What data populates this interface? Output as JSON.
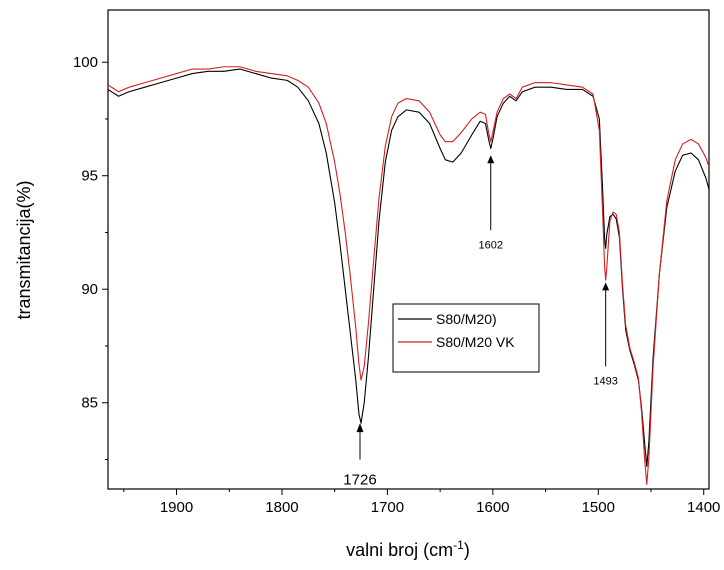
{
  "chart_data": {
    "type": "line",
    "title": "",
    "xlabel": "valni broj (cm",
    "xlabel_sup": "-1",
    "xlabel_end": ")",
    "ylabel": "transmitancija(%)",
    "xlim": [
      1965,
      1395
    ],
    "ylim": [
      81.2,
      102.3
    ],
    "x_reversed": true,
    "grid": false,
    "legend_position": "center-right",
    "xticks": [
      1900,
      1800,
      1700,
      1600,
      1500,
      1400
    ],
    "xtick_labels": [
      "1900",
      "1800",
      "1700",
      "1600",
      "1500",
      "1400"
    ],
    "yticks": [
      85,
      90,
      95,
      100
    ],
    "ytick_labels": [
      "85",
      "90",
      "95",
      "100"
    ],
    "series": [
      {
        "name": "S80/M20)",
        "color": "#000000",
        "points": [
          [
            1965,
            98.8
          ],
          [
            1955,
            98.5
          ],
          [
            1945,
            98.7
          ],
          [
            1930,
            98.9
          ],
          [
            1915,
            99.1
          ],
          [
            1900,
            99.3
          ],
          [
            1885,
            99.5
          ],
          [
            1870,
            99.6
          ],
          [
            1855,
            99.6
          ],
          [
            1840,
            99.7
          ],
          [
            1825,
            99.5
          ],
          [
            1810,
            99.3
          ],
          [
            1795,
            99.2
          ],
          [
            1785,
            98.9
          ],
          [
            1775,
            98.3
          ],
          [
            1765,
            97.3
          ],
          [
            1758,
            96.0
          ],
          [
            1750,
            93.8
          ],
          [
            1745,
            92.0
          ],
          [
            1740,
            90.0
          ],
          [
            1735,
            88.0
          ],
          [
            1730,
            86.0
          ],
          [
            1727,
            84.5
          ],
          [
            1725,
            84.1
          ],
          [
            1722,
            85.0
          ],
          [
            1718,
            87.0
          ],
          [
            1713,
            90.0
          ],
          [
            1708,
            93.0
          ],
          [
            1702,
            95.6
          ],
          [
            1696,
            97.0
          ],
          [
            1690,
            97.6
          ],
          [
            1682,
            97.9
          ],
          [
            1670,
            97.8
          ],
          [
            1660,
            97.3
          ],
          [
            1650,
            96.2
          ],
          [
            1645,
            95.7
          ],
          [
            1638,
            95.6
          ],
          [
            1630,
            96.0
          ],
          [
            1620,
            96.8
          ],
          [
            1612,
            97.4
          ],
          [
            1607,
            97.3
          ],
          [
            1604,
            96.6
          ],
          [
            1602,
            96.2
          ],
          [
            1600,
            96.6
          ],
          [
            1596,
            97.6
          ],
          [
            1590,
            98.2
          ],
          [
            1584,
            98.5
          ],
          [
            1578,
            98.3
          ],
          [
            1572,
            98.7
          ],
          [
            1560,
            98.9
          ],
          [
            1545,
            98.9
          ],
          [
            1530,
            98.8
          ],
          [
            1515,
            98.8
          ],
          [
            1505,
            98.5
          ],
          [
            1499,
            97.5
          ],
          [
            1496,
            94.5
          ],
          [
            1494,
            92.2
          ],
          [
            1493,
            91.8
          ],
          [
            1492,
            92.4
          ],
          [
            1489,
            93.2
          ],
          [
            1486,
            93.3
          ],
          [
            1483,
            93.1
          ],
          [
            1480,
            92.3
          ],
          [
            1477,
            90.0
          ],
          [
            1474,
            88.2
          ],
          [
            1470,
            87.3
          ],
          [
            1466,
            86.7
          ],
          [
            1462,
            86.0
          ],
          [
            1459,
            84.8
          ],
          [
            1456,
            83.2
          ],
          [
            1454,
            82.2
          ],
          [
            1452,
            83.3
          ],
          [
            1448,
            87.0
          ],
          [
            1442,
            90.7
          ],
          [
            1435,
            93.6
          ],
          [
            1427,
            95.2
          ],
          [
            1420,
            95.9
          ],
          [
            1412,
            96.0
          ],
          [
            1405,
            95.7
          ],
          [
            1398,
            94.9
          ],
          [
            1395,
            94.4
          ]
        ]
      },
      {
        "name": "S80/M20 VK",
        "color": "#d42020",
        "points": [
          [
            1965,
            99.0
          ],
          [
            1955,
            98.7
          ],
          [
            1945,
            98.9
          ],
          [
            1930,
            99.1
          ],
          [
            1915,
            99.3
          ],
          [
            1900,
            99.5
          ],
          [
            1885,
            99.7
          ],
          [
            1870,
            99.7
          ],
          [
            1855,
            99.8
          ],
          [
            1840,
            99.8
          ],
          [
            1825,
            99.6
          ],
          [
            1810,
            99.5
          ],
          [
            1795,
            99.4
          ],
          [
            1785,
            99.2
          ],
          [
            1775,
            98.9
          ],
          [
            1765,
            98.2
          ],
          [
            1758,
            97.3
          ],
          [
            1750,
            95.6
          ],
          [
            1745,
            94.2
          ],
          [
            1740,
            92.5
          ],
          [
            1735,
            90.5
          ],
          [
            1730,
            88.3
          ],
          [
            1727,
            86.7
          ],
          [
            1725,
            86.0
          ],
          [
            1722,
            86.6
          ],
          [
            1718,
            88.5
          ],
          [
            1713,
            91.3
          ],
          [
            1708,
            94.0
          ],
          [
            1702,
            96.3
          ],
          [
            1696,
            97.6
          ],
          [
            1690,
            98.2
          ],
          [
            1682,
            98.4
          ],
          [
            1670,
            98.3
          ],
          [
            1660,
            97.8
          ],
          [
            1650,
            96.8
          ],
          [
            1645,
            96.5
          ],
          [
            1638,
            96.5
          ],
          [
            1630,
            96.9
          ],
          [
            1620,
            97.5
          ],
          [
            1612,
            97.8
          ],
          [
            1607,
            97.7
          ],
          [
            1604,
            96.9
          ],
          [
            1602,
            96.5
          ],
          [
            1600,
            96.9
          ],
          [
            1596,
            97.8
          ],
          [
            1590,
            98.4
          ],
          [
            1584,
            98.6
          ],
          [
            1578,
            98.4
          ],
          [
            1572,
            98.9
          ],
          [
            1560,
            99.1
          ],
          [
            1545,
            99.1
          ],
          [
            1530,
            99.0
          ],
          [
            1515,
            98.9
          ],
          [
            1505,
            98.6
          ],
          [
            1499,
            97.0
          ],
          [
            1496,
            93.5
          ],
          [
            1494,
            91.0
          ],
          [
            1493,
            90.4
          ],
          [
            1492,
            90.9
          ],
          [
            1489,
            93.0
          ],
          [
            1486,
            93.4
          ],
          [
            1483,
            93.3
          ],
          [
            1480,
            92.5
          ],
          [
            1477,
            90.2
          ],
          [
            1474,
            88.4
          ],
          [
            1470,
            87.4
          ],
          [
            1466,
            86.8
          ],
          [
            1462,
            86.1
          ],
          [
            1459,
            84.6
          ],
          [
            1456,
            82.5
          ],
          [
            1454,
            81.4
          ],
          [
            1452,
            82.6
          ],
          [
            1448,
            86.6
          ],
          [
            1442,
            90.7
          ],
          [
            1435,
            93.9
          ],
          [
            1427,
            95.7
          ],
          [
            1420,
            96.4
          ],
          [
            1412,
            96.6
          ],
          [
            1405,
            96.4
          ],
          [
            1398,
            95.8
          ],
          [
            1395,
            95.4
          ]
        ]
      }
    ],
    "annotations": [
      {
        "label": "1726",
        "x": 1726,
        "tip_y": 84.1,
        "direction": "below",
        "tail_y": 82.5,
        "text_y": 81.4,
        "size": "large"
      },
      {
        "label": "1602",
        "x": 1602,
        "tip_y": 95.9,
        "direction": "below",
        "tail_y": 92.6,
        "text_y": 91.8,
        "size": "small"
      },
      {
        "label": "1493",
        "x": 1493,
        "tip_y": 90.3,
        "direction": "below",
        "tail_y": 86.6,
        "text_y": 85.8,
        "size": "small"
      }
    ]
  }
}
